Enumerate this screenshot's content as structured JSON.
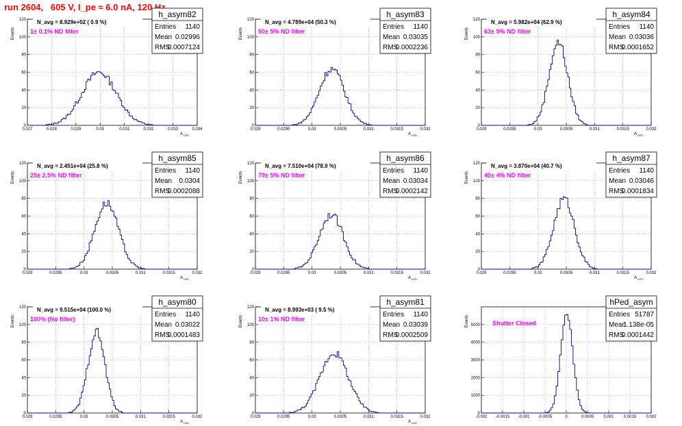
{
  "title": "run 2604,   605 V, I_pe ≈ 6.0 nA, 120 Hz",
  "colors": {
    "title": "#ff0000",
    "histogram": "#00008b",
    "filter_text": "#ff00ff",
    "grid": "#9a9a9a"
  },
  "chart_data": [
    {
      "type": "histogram",
      "name": "h_asym82",
      "navg": "N_avg = 8.929e+02 ( 0.9 %)",
      "filter": "1± 0.1% ND filter",
      "stats": {
        "entries": "1140",
        "mean": "0.02996",
        "rms": "0.0007124"
      },
      "xlim": [
        0.027,
        0.034
      ],
      "ylim": [
        0,
        120
      ],
      "ylabel": "Events",
      "xlabel": "A_LED",
      "xticks": [
        "0.027",
        "0.028",
        "0.029",
        "0.03",
        "0.031",
        "0.032",
        "0.033",
        "0.034"
      ],
      "yticks": [
        "0",
        "20",
        "40",
        "60",
        "80",
        "100",
        "120"
      ],
      "mean": 0.02996,
      "rms": 0.0007124,
      "peak": 60
    },
    {
      "type": "histogram",
      "name": "h_asym83",
      "navg": "N_avg = 4.789e+04 (50.3 %)",
      "filter": "50± 5% ND filter",
      "stats": {
        "entries": "1140",
        "mean": "0.03035",
        "rms": "0.0002236"
      },
      "xlim": [
        0.029,
        0.032
      ],
      "ylim": [
        0,
        120
      ],
      "ylabel": "Events",
      "xlabel": "A_LED",
      "xticks": [
        "0.029",
        "0.0295",
        "0.03",
        "0.0305",
        "0.031",
        "0.0315",
        "0.032"
      ],
      "yticks": [
        "0",
        "20",
        "40",
        "60",
        "80",
        "100",
        "120"
      ],
      "mean": 0.03035,
      "rms": 0.0002236,
      "peak": 64
    },
    {
      "type": "histogram",
      "name": "h_asym84",
      "navg": "N_avg = 5.982e+04 (62.9 %)",
      "filter": "63± 5% ND filter",
      "stats": {
        "entries": "1140",
        "mean": "0.03036",
        "rms": "0.0001652"
      },
      "xlim": [
        0.029,
        0.032
      ],
      "ylim": [
        0,
        120
      ],
      "ylabel": "Events",
      "xlabel": "A_LED",
      "xticks": [
        "0.029",
        "0.0295",
        "0.03",
        "0.0305",
        "0.031",
        "0.0315",
        "0.032"
      ],
      "yticks": [
        "0",
        "20",
        "40",
        "60",
        "80",
        "100",
        "120"
      ],
      "mean": 0.03036,
      "rms": 0.0001652,
      "peak": 94
    },
    {
      "type": "histogram",
      "name": "h_asym85",
      "navg": "N_avg = 2.451e+04 (25.8 %)",
      "filter": "25± 2.5% ND filter",
      "stats": {
        "entries": "1140",
        "mean": "0.0304",
        "rms": "0.0002088"
      },
      "xlim": [
        0.029,
        0.032
      ],
      "ylim": [
        0,
        120
      ],
      "ylabel": "Events",
      "xlabel": "A_LED",
      "xticks": [
        "0.029",
        "0.0295",
        "0.03",
        "0.0305",
        "0.031",
        "0.0315",
        "0.032"
      ],
      "yticks": [
        "0",
        "20",
        "40",
        "60",
        "80",
        "100",
        "120"
      ],
      "mean": 0.0304,
      "rms": 0.0002088,
      "peak": 75
    },
    {
      "type": "histogram",
      "name": "h_asym86",
      "navg": "N_avg = 7.510e+04 (78.9 %)",
      "filter": "79± 5% ND filter",
      "stats": {
        "entries": "1140",
        "mean": "0.03034",
        "rms": "0.0002142"
      },
      "xlim": [
        0.029,
        0.032
      ],
      "ylim": [
        0,
        120
      ],
      "ylabel": "Events",
      "xlabel": "A_LED",
      "xticks": [
        "0.029",
        "0.0295",
        "0.03",
        "0.0305",
        "0.031",
        "0.0315",
        "0.032"
      ],
      "yticks": [
        "0",
        "20",
        "40",
        "60",
        "80",
        "100",
        "120"
      ],
      "mean": 0.03034,
      "rms": 0.0002142,
      "peak": 62
    },
    {
      "type": "histogram",
      "name": "h_asym87",
      "navg": "N_avg = 3.870e+04 (40.7 %)",
      "filter": "40± 4% ND filter",
      "stats": {
        "entries": "1140",
        "mean": "0.03046",
        "rms": "0.0001834"
      },
      "xlim": [
        0.029,
        0.032
      ],
      "ylim": [
        0,
        120
      ],
      "ylabel": "Events",
      "xlabel": "A_LED",
      "xticks": [
        "0.029",
        "0.0295",
        "0.03",
        "0.0305",
        "0.031",
        "0.0315",
        "0.032"
      ],
      "yticks": [
        "0",
        "20",
        "40",
        "60",
        "80",
        "100",
        "120"
      ],
      "mean": 0.03046,
      "rms": 0.0001834,
      "peak": 80
    },
    {
      "type": "histogram",
      "name": "h_asym80",
      "navg": "N_avg = 9.515e+04 (100.0 %)",
      "filter": "100% (No filter)",
      "stats": {
        "entries": "1140",
        "mean": "0.03022",
        "rms": "0.0001483"
      },
      "xlim": [
        0.029,
        0.032
      ],
      "ylim": [
        0,
        120
      ],
      "ylabel": "Events",
      "xlabel": "A_LED",
      "xticks": [
        "0.029",
        "0.0295",
        "0.03",
        "0.0305",
        "0.031",
        "0.0315",
        "0.032"
      ],
      "yticks": [
        "0",
        "20",
        "40",
        "60",
        "80",
        "100",
        "120"
      ],
      "mean": 0.03022,
      "rms": 0.0001483,
      "peak": 92
    },
    {
      "type": "histogram",
      "name": "h_asym81",
      "navg": "N_avg = 8.993e+03 ( 9.5 %)",
      "filter": "10± 1% ND filter",
      "stats": {
        "entries": "1140",
        "mean": "0.03039",
        "rms": "0.0002509"
      },
      "xlim": [
        0.029,
        0.032
      ],
      "ylim": [
        0,
        120
      ],
      "ylabel": "Events",
      "xlabel": "A_LED",
      "xticks": [
        "0.029",
        "0.0295",
        "0.03",
        "0.0305",
        "0.031",
        "0.0315",
        "0.032"
      ],
      "yticks": [
        "0",
        "20",
        "40",
        "60",
        "80",
        "100",
        "120"
      ],
      "mean": 0.03039,
      "rms": 0.0002509,
      "peak": 68
    },
    {
      "type": "histogram",
      "name": "hPed_asym",
      "navg": "",
      "filter": "Shutter Closed",
      "stats": {
        "entries": "51787",
        "mean": "1.138e-05",
        "rms": "0.0001442"
      },
      "xlim": [
        -0.002,
        0.002
      ],
      "ylim": [
        0,
        6000
      ],
      "ylabel": "Events",
      "xlabel": "",
      "xticks": [
        "-0.002",
        "-0.0015",
        "-0.001",
        "-0.0005",
        "0",
        "0.0005",
        "0.001",
        "0.0015",
        "0.002"
      ],
      "yticks": [
        "0",
        "1000",
        "2000",
        "3000",
        "4000",
        "5000"
      ],
      "mean": 1.138e-05,
      "rms": 0.0001442,
      "peak": 5600
    }
  ],
  "stat_labels": {
    "entries": "Entries",
    "mean": "Mean",
    "rms": "RMS"
  }
}
